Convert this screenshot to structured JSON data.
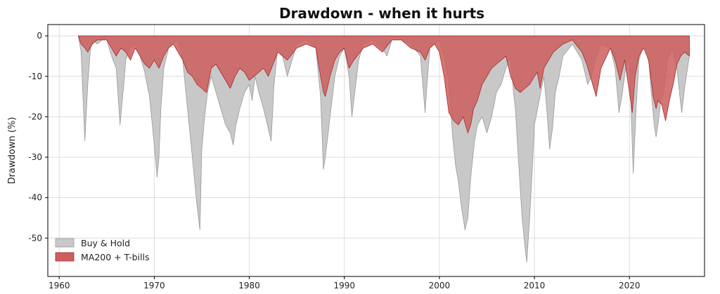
{
  "chart_data": {
    "type": "area",
    "title": "Drawdown - when it hurts",
    "xlabel": "",
    "ylabel": "Drawdown (%)",
    "xlim": [
      1958.8,
      2027.9
    ],
    "ylim": [
      -59.5,
      2.8
    ],
    "x_ticks": [
      1960,
      1970,
      1980,
      1990,
      2000,
      2010,
      2020
    ],
    "y_ticks": [
      0,
      -10,
      -20,
      -30,
      -40,
      -50
    ],
    "grid": true,
    "legend_position": "lower-left",
    "series": [
      {
        "name": "Buy & Hold",
        "color": "#c8c8c8",
        "stroke": "#9a9a9a",
        "x": [
          1962.0,
          1962.3,
          1962.5,
          1962.7,
          1963.0,
          1963.3,
          1963.6,
          1964.0,
          1964.5,
          1965.0,
          1965.5,
          1966.0,
          1966.4,
          1966.8,
          1967.0,
          1967.5,
          1968.0,
          1968.5,
          1969.0,
          1969.5,
          1970.0,
          1970.3,
          1970.5,
          1970.7,
          1971.0,
          1971.5,
          1972.0,
          1972.5,
          1973.0,
          1973.5,
          1974.0,
          1974.5,
          1974.8,
          1975.0,
          1975.3,
          1975.6,
          1976.0,
          1976.5,
          1977.0,
          1977.5,
          1978.0,
          1978.3,
          1978.6,
          1979.0,
          1979.5,
          1980.0,
          1980.3,
          1980.6,
          1981.0,
          1981.5,
          1982.0,
          1982.3,
          1982.6,
          1983.0,
          1983.5,
          1984.0,
          1984.5,
          1985.0,
          1986.0,
          1987.0,
          1987.5,
          1987.8,
          1988.0,
          1988.5,
          1989.0,
          1989.5,
          1990.0,
          1990.5,
          1990.8,
          1991.0,
          1991.5,
          1992.0,
          1993.0,
          1994.0,
          1994.5,
          1995.0,
          1996.0,
          1997.0,
          1998.0,
          1998.5,
          1998.7,
          1999.0,
          1999.5,
          2000.0,
          2000.5,
          2001.0,
          2001.4,
          2001.7,
          2002.0,
          2002.3,
          2002.7,
          2003.0,
          2003.3,
          2003.7,
          2004.0,
          2004.5,
          2005.0,
          2005.5,
          2006.0,
          2006.5,
          2007.0,
          2007.5,
          2007.8,
          2008.0,
          2008.3,
          2008.7,
          2009.0,
          2009.2,
          2009.5,
          2009.8,
          2010.0,
          2010.5,
          2011.0,
          2011.3,
          2011.6,
          2011.9,
          2012.2,
          2012.6,
          2013.0,
          2014.0,
          2015.0,
          2015.6,
          2016.0,
          2016.5,
          2017.0,
          2018.0,
          2018.5,
          2018.9,
          2019.2,
          2019.6,
          2020.0,
          2020.2,
          2020.4,
          2020.7,
          2021.0,
          2021.5,
          2022.0,
          2022.3,
          2022.6,
          2022.8,
          2023.0,
          2023.3,
          2023.6,
          2024.0,
          2024.5,
          2025.0,
          2025.3,
          2025.5,
          2025.8,
          2026.3
        ],
        "y": [
          0,
          -4,
          -15,
          -26,
          -12,
          -3,
          -1,
          -2,
          -1,
          -1,
          -5,
          -8,
          -22,
          -12,
          -6,
          -3,
          -2,
          -5,
          -9,
          -15,
          -27,
          -35,
          -30,
          -18,
          -8,
          -3,
          -2,
          -1,
          -6,
          -18,
          -30,
          -42,
          -48,
          -28,
          -20,
          -14,
          -10,
          -14,
          -18,
          -22,
          -24,
          -27,
          -22,
          -18,
          -14,
          -12,
          -16,
          -10,
          -14,
          -18,
          -23,
          -26,
          -12,
          -3,
          -5,
          -10,
          -6,
          -2,
          -1,
          -3,
          -15,
          -33,
          -30,
          -20,
          -10,
          -5,
          -3,
          -10,
          -20,
          -16,
          -6,
          -2,
          -1,
          -3,
          -5,
          -1,
          -1,
          -2,
          -5,
          -19,
          -12,
          -3,
          -2,
          -1,
          -5,
          -12,
          -25,
          -32,
          -36,
          -42,
          -48,
          -45,
          -35,
          -26,
          -22,
          -20,
          -24,
          -20,
          -14,
          -12,
          -8,
          -5,
          -14,
          -18,
          -30,
          -45,
          -52,
          -56,
          -45,
          -32,
          -22,
          -16,
          -10,
          -18,
          -28,
          -23,
          -14,
          -10,
          -5,
          -2,
          -6,
          -12,
          -10,
          -5,
          -2,
          -3,
          -8,
          -19,
          -15,
          -8,
          -5,
          -20,
          -34,
          -18,
          -6,
          -2,
          -5,
          -14,
          -22,
          -25,
          -22,
          -16,
          -14,
          -6,
          -3,
          -8,
          -15,
          -19,
          -13,
          -5
        ]
      },
      {
        "name": "MA200 + T-bills",
        "color": "#cd5e5e",
        "stroke": "#a82828",
        "x": [
          1962.0,
          1962.3,
          1962.7,
          1963.0,
          1963.5,
          1964.0,
          1965.0,
          1965.5,
          1966.0,
          1966.5,
          1967.0,
          1967.5,
          1968.0,
          1968.5,
          1969.0,
          1969.5,
          1970.0,
          1970.5,
          1971.0,
          1971.5,
          1972.0,
          1972.5,
          1973.0,
          1973.5,
          1974.0,
          1974.5,
          1975.0,
          1975.5,
          1976.0,
          1976.5,
          1977.0,
          1977.5,
          1978.0,
          1978.5,
          1979.0,
          1979.5,
          1980.0,
          1980.5,
          1981.0,
          1981.5,
          1982.0,
          1982.5,
          1983.0,
          1984.0,
          1985.0,
          1986.0,
          1987.0,
          1987.5,
          1987.8,
          1988.0,
          1988.5,
          1989.0,
          1989.5,
          1990.0,
          1990.5,
          1991.0,
          1992.0,
          1993.0,
          1994.0,
          1995.0,
          1996.0,
          1997.0,
          1998.0,
          1998.5,
          1999.0,
          1999.5,
          2000.0,
          2000.5,
          2001.0,
          2001.5,
          2002.0,
          2002.5,
          2003.0,
          2003.3,
          2003.6,
          2004.0,
          2004.5,
          2005.0,
          2005.5,
          2006.0,
          2006.5,
          2007.0,
          2007.5,
          2008.0,
          2008.5,
          2009.0,
          2009.5,
          2010.0,
          2010.3,
          2010.6,
          2011.0,
          2011.5,
          2012.0,
          2012.5,
          2013.0,
          2014.0,
          2015.0,
          2015.5,
          2016.0,
          2016.5,
          2017.0,
          2018.0,
          2018.5,
          2019.0,
          2019.5,
          2020.0,
          2020.3,
          2020.6,
          2021.0,
          2021.5,
          2022.0,
          2022.5,
          2022.8,
          2023.0,
          2023.4,
          2023.8,
          2024.2,
          2024.6,
          2025.0,
          2025.4,
          2025.8,
          2026.3
        ],
        "y": [
          0,
          -2,
          -3,
          -4,
          -2,
          -1,
          -1,
          -3,
          -5,
          -3,
          -4,
          -6,
          -3,
          -5,
          -7,
          -8,
          -6,
          -8,
          -5,
          -3,
          -2,
          -4,
          -6,
          -9,
          -10,
          -12,
          -13,
          -14,
          -8,
          -7,
          -9,
          -11,
          -13,
          -10,
          -8,
          -9,
          -11,
          -10,
          -9,
          -8,
          -10,
          -7,
          -4,
          -6,
          -3,
          -2,
          -3,
          -10,
          -14,
          -15,
          -10,
          -6,
          -4,
          -3,
          -8,
          -6,
          -3,
          -2,
          -4,
          -1,
          -1,
          -3,
          -4,
          -6,
          -3,
          -2,
          -4,
          -10,
          -19,
          -21,
          -22,
          -20,
          -24,
          -22,
          -18,
          -16,
          -12,
          -10,
          -8,
          -7,
          -6,
          -5,
          -10,
          -13,
          -14,
          -13,
          -12,
          -10,
          -9,
          -13,
          -8,
          -6,
          -4,
          -3,
          -2,
          -1,
          -4,
          -7,
          -11,
          -15,
          -8,
          -3,
          -6,
          -11,
          -6,
          -14,
          -19,
          -10,
          -5,
          -3,
          -6,
          -15,
          -18,
          -16,
          -17,
          -21,
          -16,
          -12,
          -7,
          -5,
          -4,
          -5
        ]
      }
    ]
  }
}
